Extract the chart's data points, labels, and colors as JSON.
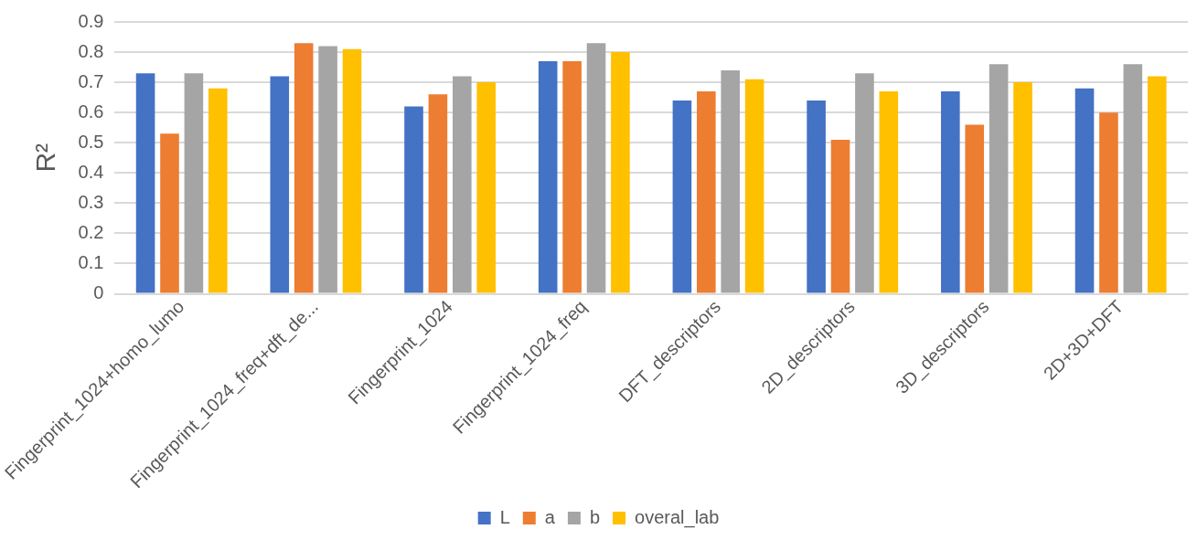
{
  "chart_data": {
    "type": "bar",
    "ylabel": "R²",
    "categories": [
      "Fingerprint_1024+homo_lumo",
      "Fingerprint_1024_freq+dft_de...",
      "Fingerprint_1024",
      "Fingerprint_1024_freq",
      "DFT_descriptors",
      "2D_descriptors",
      "3D_descriptors",
      "2D+3D+DFT"
    ],
    "series": [
      {
        "name": "L",
        "color": "#4472c4",
        "values": [
          0.73,
          0.72,
          0.62,
          0.77,
          0.64,
          0.64,
          0.67,
          0.68
        ]
      },
      {
        "name": "a",
        "color": "#ed7d31",
        "values": [
          0.53,
          0.83,
          0.66,
          0.77,
          0.67,
          0.51,
          0.56,
          0.6
        ]
      },
      {
        "name": "b",
        "color": "#a5a5a5",
        "values": [
          0.73,
          0.82,
          0.72,
          0.83,
          0.74,
          0.73,
          0.76,
          0.76
        ]
      },
      {
        "name": "overal_lab",
        "color": "#ffc000",
        "values": [
          0.68,
          0.81,
          0.7,
          0.8,
          0.71,
          0.67,
          0.7,
          0.72
        ]
      }
    ],
    "ylim": [
      0,
      0.9
    ],
    "yticks": [
      0,
      0.1,
      0.2,
      0.3,
      0.4,
      0.5,
      0.6,
      0.7,
      0.8,
      0.9
    ],
    "grid": "y",
    "legend": "bottom"
  }
}
